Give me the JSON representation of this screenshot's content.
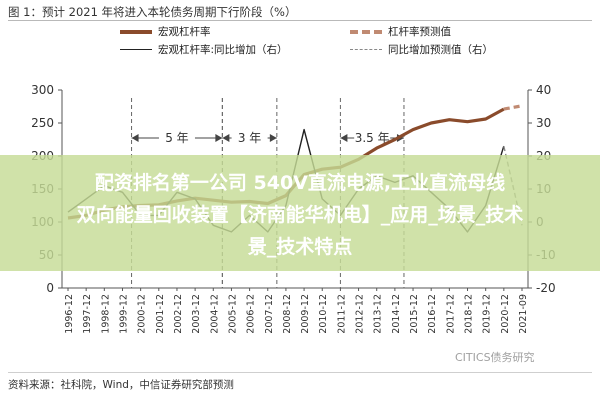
{
  "figure_title": "图 1：预计 2021 年将进入本轮债务周期下行阶段（%）",
  "source": "资料来源：社科院，Wind，中信证券研究部预测",
  "watermark": "CITICS债务研究",
  "overlay": {
    "line1": "配资排名第一公司 540V直流电源,工业直流母线",
    "line2": "双向能量回收装置【济南能华机电】_应用_场景_技术",
    "line3": "景_技术特点"
  },
  "legend": [
    {
      "label": "宏观杠杆率",
      "style": "solid-thick",
      "color": "#8a4b2b"
    },
    {
      "label": "杠杆率预测值",
      "style": "dash-thick",
      "color": "#c08a72"
    },
    {
      "label": "宏观杠杆率:同比增加（右）",
      "style": "solid-thin",
      "color": "#222222"
    },
    {
      "label": "同比增加预测值（右）",
      "style": "dash-thin",
      "color": "#888888"
    }
  ],
  "chart_data": {
    "type": "line",
    "x": [
      "1996-12",
      "1997-12",
      "1998-12",
      "1999-12",
      "2000-12",
      "2001-12",
      "2002-12",
      "2003-12",
      "2004-12",
      "2005-12",
      "2006-12",
      "2007-12",
      "2008-12",
      "2009-12",
      "2010-12",
      "2011-12",
      "2012-12",
      "2013-12",
      "2014-12",
      "2015-12",
      "2016-12",
      "2017-12",
      "2018-12",
      "2019-12",
      "2020-12",
      "2021-09"
    ],
    "series": [
      {
        "name": "宏观杠杆率",
        "axis": "left",
        "values": [
          106,
          110,
          118,
          123,
          125,
          126,
          132,
          136,
          133,
          130,
          131,
          128,
          140,
          172,
          180,
          183,
          195,
          212,
          225,
          240,
          250,
          255,
          252,
          256,
          271,
          null
        ]
      },
      {
        "name": "杠杆率预测值",
        "axis": "left",
        "values": [
          null,
          null,
          null,
          null,
          null,
          null,
          null,
          null,
          null,
          null,
          null,
          null,
          null,
          null,
          null,
          null,
          null,
          null,
          null,
          null,
          null,
          null,
          null,
          null,
          271,
          276
        ]
      },
      {
        "name": "宏观杠杆率:同比增加（右）",
        "axis": "right",
        "values": [
          3,
          7,
          11,
          9,
          2,
          2,
          9,
          7,
          -1,
          -3,
          2,
          -3,
          5,
          28,
          7,
          2,
          10,
          14,
          12,
          14,
          9,
          4,
          -3,
          5,
          23,
          null
        ]
      },
      {
        "name": "同比增加预测值（右）",
        "axis": "right",
        "values": [
          null,
          null,
          null,
          null,
          null,
          null,
          null,
          null,
          null,
          null,
          null,
          null,
          null,
          null,
          null,
          null,
          null,
          null,
          null,
          null,
          null,
          null,
          null,
          null,
          23,
          -1
        ]
      }
    ],
    "y_left": {
      "min": 0,
      "max": 300,
      "ticks": [
        0,
        50,
        100,
        150,
        200,
        250,
        300
      ]
    },
    "y_right": {
      "min": -20,
      "max": 40,
      "ticks": [
        -20,
        -10,
        0,
        10,
        20,
        30,
        40
      ]
    },
    "cycle_annotations": [
      {
        "label": "5 年",
        "from": "2000-06",
        "to": "2005-06"
      },
      {
        "label": "3 年",
        "from": "2005-06",
        "to": "2008-06"
      },
      {
        "label": "3.5 年",
        "from": "2011-12",
        "to": "2015-06"
      }
    ],
    "grid": false,
    "legend_position": "top"
  }
}
